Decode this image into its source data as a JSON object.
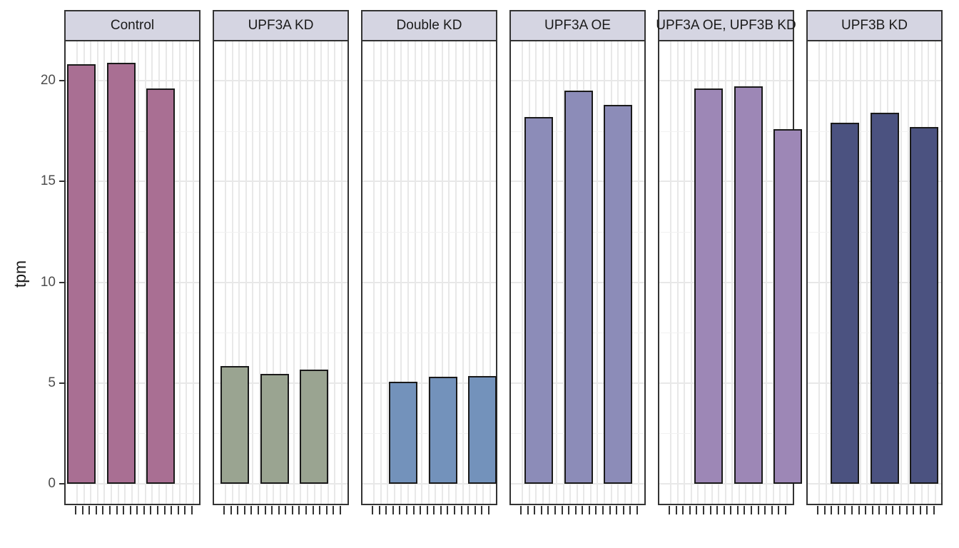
{
  "chart_data": {
    "type": "bar",
    "title": "",
    "xlabel": "",
    "ylabel": "tpm",
    "y_ticks": [
      0,
      5,
      10,
      15,
      20
    ],
    "y_minor_ticks": [
      2.5,
      7.5,
      12.5,
      17.5
    ],
    "ylim": [
      -1.1,
      22.0
    ],
    "x_tick_labels_shown": false,
    "x_ticks_per_panel": 18,
    "grid": "on",
    "legend_position": "none",
    "bars_per_facet": 3,
    "facets": [
      {
        "label": "Control",
        "bar_color": "#a96f93",
        "values": [
          20.8,
          20.9,
          19.6
        ]
      },
      {
        "label": "UPF3A KD",
        "bar_color": "#9aa491",
        "values": [
          5.85,
          5.45,
          5.65
        ]
      },
      {
        "label": "Double KD",
        "bar_color": "#7392bb",
        "values": [
          5.05,
          5.3,
          5.35
        ]
      },
      {
        "label": "UPF3A OE",
        "bar_color": "#8c8cb8",
        "values": [
          18.2,
          19.5,
          18.8
        ]
      },
      {
        "label": "UPF3A OE, UPF3B KD",
        "bar_color": "#9d87b6",
        "values": [
          19.6,
          19.7,
          17.6
        ]
      },
      {
        "label": "UPF3B KD",
        "bar_color": "#4b5280",
        "values": [
          17.9,
          18.4,
          17.7
        ]
      }
    ],
    "style_colors": {
      "strip_background": "#d5d5e2",
      "panel_border": "#333333",
      "bar_border": "#1a1a1a",
      "grid_major": "#e8e8e8",
      "grid_minor": "#f1f1f1",
      "axis_text": "#4d4d4d",
      "background": "#ffffff"
    }
  }
}
